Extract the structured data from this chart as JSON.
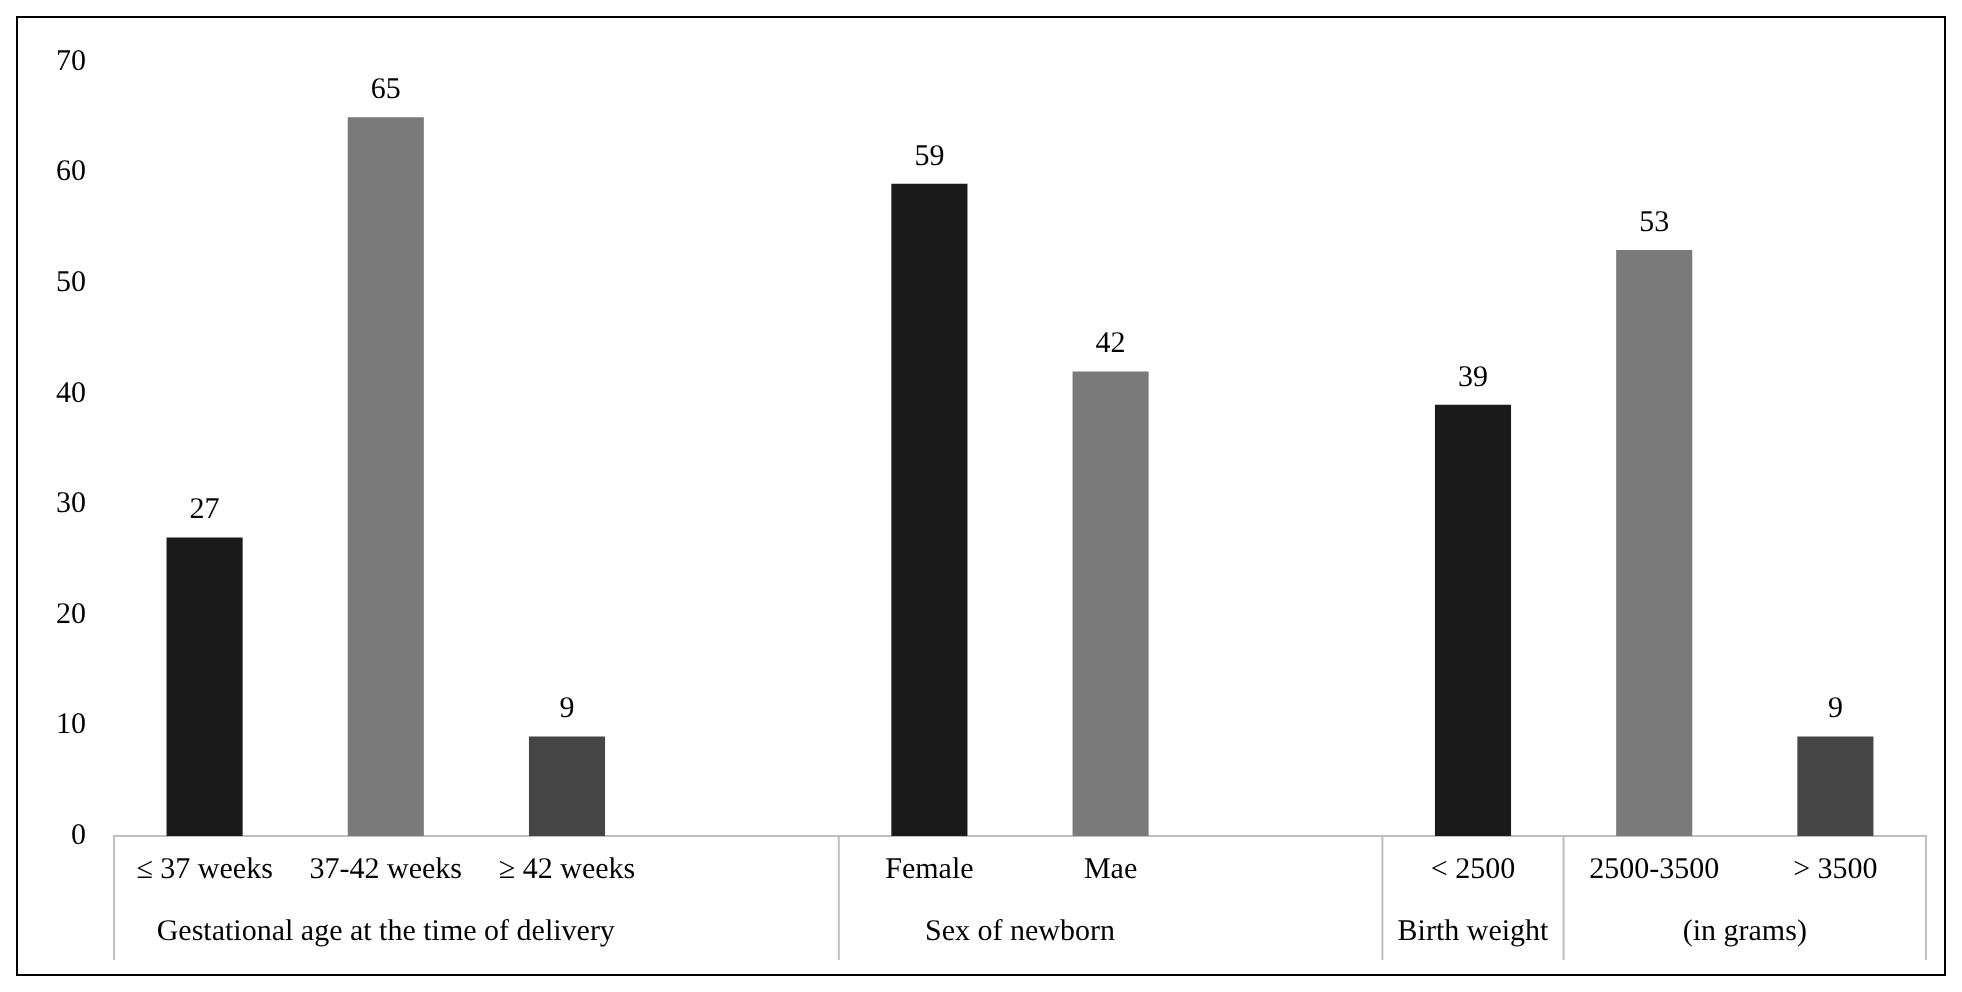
{
  "chart_data": {
    "type": "bar",
    "categories": [
      "≤ 37 weeks",
      "37-42 weeks",
      "≥ 42 weeks",
      null,
      "Female",
      "Mae",
      null,
      "< 2500",
      "2500-3500",
      "> 3500"
    ],
    "values": [
      27,
      65,
      9,
      null,
      59,
      42,
      null,
      39,
      53,
      9
    ],
    "colors": [
      "#1a1a1a",
      "#7a7a7a",
      "#454545",
      null,
      "#1a1a1a",
      "#7a7a7a",
      null,
      "#1a1a1a",
      "#7a7a7a",
      "#454545"
    ],
    "ylim": [
      0,
      70
    ],
    "yticks": [
      0,
      10,
      20,
      30,
      40,
      50,
      60,
      70
    ],
    "grid": false,
    "legend": false,
    "data_labels": true,
    "annotations": [
      "Gestational age at the time of delivery",
      "Sex of newborn",
      "Birth weight",
      "(in grams)"
    ]
  }
}
